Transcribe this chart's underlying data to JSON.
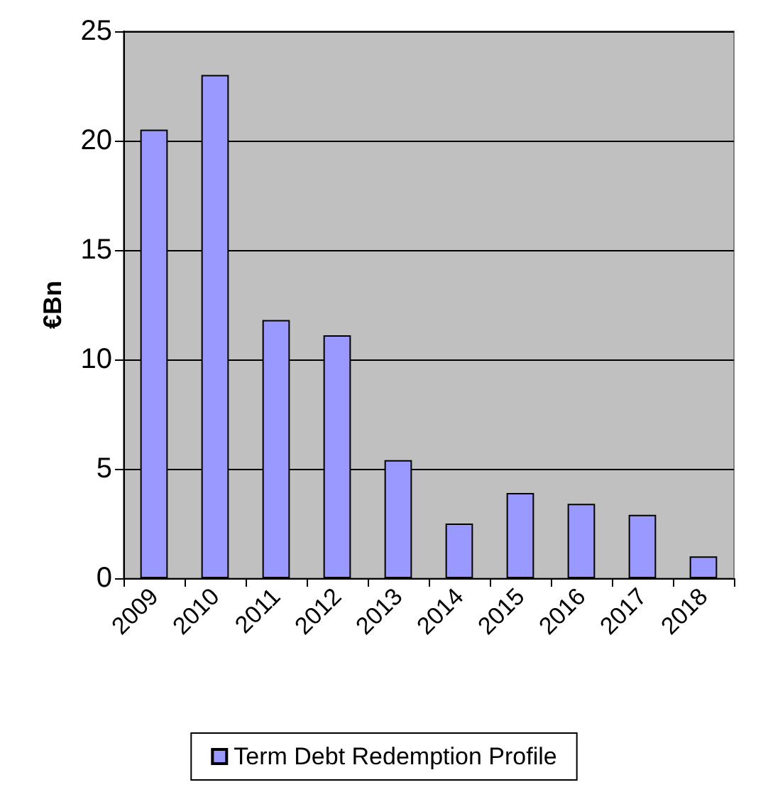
{
  "chart_data": {
    "type": "bar",
    "ylabel": "€Bn",
    "categories": [
      "2009",
      "2010",
      "2011",
      "2012",
      "2013",
      "2014",
      "2015",
      "2016",
      "2017",
      "2018"
    ],
    "series": [
      {
        "name": "Term Debt Redemption Profile",
        "color": "#9999ff",
        "values": [
          20.5,
          23,
          11.8,
          11.1,
          5.4,
          2.5,
          3.9,
          3.4,
          2.9,
          1.0
        ]
      }
    ],
    "ylim": [
      0,
      25
    ],
    "yticks": [
      0,
      5,
      10,
      15,
      20,
      25
    ],
    "grid": "y",
    "legend": "bottom"
  }
}
